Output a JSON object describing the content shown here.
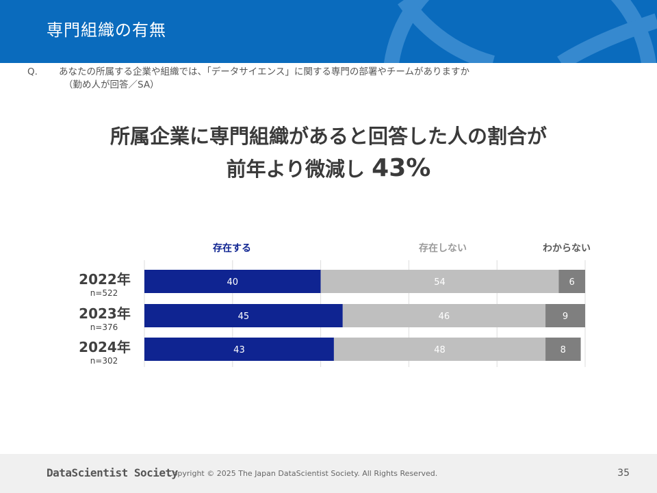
{
  "header": {
    "title": "専門組織の有無"
  },
  "question": {
    "label": "Q.",
    "text": "あなたの所属する企業や組織では、「データサイエンス」に関する専門の部署やチームがありますか",
    "note": "（勤め人が回答／SA）"
  },
  "headline": {
    "line1": "所属企業に専門組織があると回答した人の割合が",
    "line2_text": "前年より微減し",
    "line2_value": "43%"
  },
  "chart_data": {
    "type": "bar",
    "orientation": "horizontal",
    "stacked": true,
    "categories": [
      "2022年",
      "2023年",
      "2024年"
    ],
    "sample_sizes": [
      "n=522",
      "n=376",
      "n=302"
    ],
    "series": [
      {
        "name": "存在する",
        "values": [
          40,
          45,
          43
        ],
        "color": "#0f2491",
        "label_color": "#0f2491"
      },
      {
        "name": "存在しない",
        "values": [
          54,
          46,
          48
        ],
        "color": "#bfbfbf",
        "label_color": "#9a9a9a"
      },
      {
        "name": "わからない",
        "values": [
          6,
          9,
          8
        ],
        "color": "#7f7f7f",
        "label_color": "#5a5a5a"
      }
    ],
    "xlim": [
      0,
      100
    ],
    "grid": true,
    "legend": "top"
  },
  "footer": {
    "logo": "DataScientist Society",
    "copyright": "Copyright © 2025  The Japan DataScientist Society. All Rights Reserved.",
    "page": "35"
  }
}
